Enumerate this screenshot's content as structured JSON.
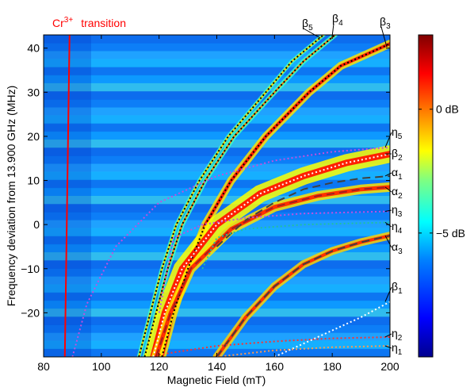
{
  "chart_data": {
    "type": "heatmap",
    "title": "",
    "xlabel": "Magnetic Field (mT)",
    "ylabel": "Frequency deviation from 13.900 GHz (MHz)",
    "xlim": [
      80,
      200
    ],
    "ylim": [
      -30,
      43
    ],
    "xticks": [
      80,
      100,
      120,
      140,
      160,
      180,
      200
    ],
    "yticks": [
      -20,
      -10,
      0,
      10,
      20,
      30,
      40
    ],
    "colorbar": {
      "ticks": [
        {
          "value": 0,
          "label": "0 dB"
        },
        {
          "value": -5,
          "label": "−5 dB"
        }
      ],
      "colors": [
        "#00008f",
        "#0000ff",
        "#0080ff",
        "#00ffff",
        "#80ff80",
        "#ffff00",
        "#ff8000",
        "#ff0000",
        "#800000"
      ]
    },
    "annotation": {
      "base": "Cr",
      "sup": "3+",
      "text": "transition",
      "field": 89,
      "color": "#ff0000"
    },
    "series": [
      {
        "name": "β",
        "sub": "5",
        "style": "dotted",
        "color": "#000000",
        "points": [
          [
            113,
            -30
          ],
          [
            117,
            -20
          ],
          [
            121,
            -10
          ],
          [
            126,
            0
          ],
          [
            134,
            10
          ],
          [
            144,
            20
          ],
          [
            157,
            30
          ],
          [
            166,
            37
          ],
          [
            177,
            43
          ]
        ]
      },
      {
        "name": "β",
        "sub": "4",
        "style": "dotted",
        "color": "#000000",
        "points": [
          [
            115,
            -30
          ],
          [
            119,
            -20
          ],
          [
            123,
            -10
          ],
          [
            128,
            0
          ],
          [
            136,
            10
          ],
          [
            146,
            20
          ],
          [
            160,
            30
          ],
          [
            170,
            37
          ],
          [
            181,
            43
          ]
        ]
      },
      {
        "name": "β",
        "sub": "3",
        "style": "dotted",
        "color": "#000000",
        "points": [
          [
            121,
            -30
          ],
          [
            125,
            -20
          ],
          [
            130,
            -10
          ],
          [
            136,
            0
          ],
          [
            145,
            10
          ],
          [
            157,
            20
          ],
          [
            172,
            30
          ],
          [
            183,
            36
          ],
          [
            200,
            41
          ]
        ]
      },
      {
        "name": "η",
        "sub": "5",
        "style": "dotted",
        "color": "#c050e0",
        "points": [
          [
            90,
            -30
          ],
          [
            95,
            -18
          ],
          [
            105,
            -5
          ],
          [
            120,
            5
          ],
          [
            140,
            11
          ],
          [
            160,
            14.5
          ],
          [
            180,
            16.5
          ],
          [
            200,
            17.5
          ]
        ]
      },
      {
        "name": "β",
        "sub": "2",
        "style": "dotted",
        "color": "#ffffff",
        "points": [
          [
            118,
            -30
          ],
          [
            122,
            -20
          ],
          [
            128,
            -10
          ],
          [
            140,
            0
          ],
          [
            155,
            7
          ],
          [
            170,
            11
          ],
          [
            185,
            14
          ],
          [
            200,
            16
          ]
        ]
      },
      {
        "name": "α",
        "sub": "1",
        "style": "dashed",
        "color": "#404040",
        "points": [
          [
            140,
            -5
          ],
          [
            150,
            1
          ],
          [
            160,
            5
          ],
          [
            170,
            8
          ],
          [
            180,
            9.5
          ],
          [
            190,
            10.5
          ],
          [
            200,
            11
          ]
        ]
      },
      {
        "name": "α",
        "sub": "2",
        "style": "dashed",
        "color": "#a02020",
        "points": [
          [
            119,
            -30
          ],
          [
            124,
            -20
          ],
          [
            131,
            -10
          ],
          [
            145,
            -1
          ],
          [
            160,
            4
          ],
          [
            175,
            6.5
          ],
          [
            190,
            8
          ],
          [
            200,
            8.5
          ]
        ]
      },
      {
        "name": "η",
        "sub": "3",
        "style": "dotted",
        "color": "#c050e0",
        "points": [
          [
            120,
            -20
          ],
          [
            125,
            -3
          ],
          [
            135,
            0
          ],
          [
            150,
            1.5
          ],
          [
            170,
            2.5
          ],
          [
            200,
            3
          ]
        ]
      },
      {
        "name": "η",
        "sub": "4",
        "style": "dotted",
        "color": "#20c0a0",
        "points": [
          [
            135,
            -10
          ],
          [
            140,
            -3
          ],
          [
            150,
            -1
          ],
          [
            170,
            0
          ],
          [
            200,
            0.5
          ]
        ]
      },
      {
        "name": "α",
        "sub": "3",
        "style": "dashed",
        "color": "#404040",
        "points": [
          [
            140,
            -30
          ],
          [
            150,
            -21
          ],
          [
            160,
            -14
          ],
          [
            170,
            -9
          ],
          [
            180,
            -6
          ],
          [
            190,
            -4
          ],
          [
            200,
            -2.5
          ]
        ]
      },
      {
        "name": "β",
        "sub": "1",
        "style": "dotted",
        "color": "#ffffff",
        "points": [
          [
            160,
            -30
          ],
          [
            170,
            -27
          ],
          [
            180,
            -24
          ],
          [
            190,
            -21
          ],
          [
            200,
            -17.5
          ]
        ]
      },
      {
        "name": "η",
        "sub": "2",
        "style": "dotted",
        "color": "#ff3030",
        "points": [
          [
            120,
            -29.5
          ],
          [
            140,
            -27.5
          ],
          [
            160,
            -26.5
          ],
          [
            180,
            -25.8
          ],
          [
            200,
            -25.5
          ]
        ]
      },
      {
        "name": "η",
        "sub": "1",
        "style": "dotted",
        "color": "#ff9a50",
        "points": [
          [
            140,
            -30
          ],
          [
            160,
            -28.5
          ],
          [
            180,
            -27.8
          ],
          [
            200,
            -27.5
          ]
        ]
      }
    ]
  }
}
